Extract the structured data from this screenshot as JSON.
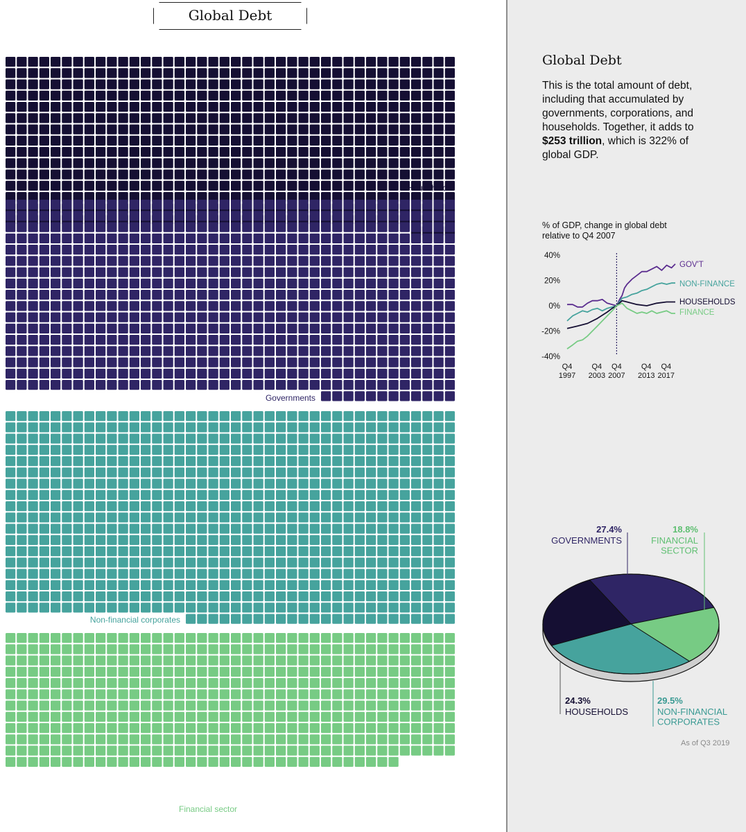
{
  "title": "Global Debt",
  "sidebar": {
    "title": "Global Debt",
    "desc_before": "This is the total amount of debt, including that accumulated by governments, corporations, and households. Together, it adds to ",
    "desc_bold": "$253 trillion",
    "desc_after": ", which is 322% of global GDP.",
    "as_of": "As of Q3 2019"
  },
  "colors": {
    "households": "#150f33",
    "governments": "#2f2565",
    "nonfinancial": "#46a39d",
    "financial": "#77cb84",
    "grid_line": "#ffffff"
  },
  "chart_data": [
    {
      "type": "waffle",
      "title": "Global Debt",
      "columns": 40,
      "segments": [
        {
          "name": "Households",
          "label": "Households",
          "squares": 616,
          "color": "#150f33"
        },
        {
          "name": "Governments",
          "label": "Governments",
          "squares": 694,
          "color": "#2f2565"
        },
        {
          "name": "Non-financial corporates",
          "label": "Non-financial corporates",
          "squares": 746,
          "color": "#46a39d"
        },
        {
          "name": "Financial sector",
          "label": "Financial sector",
          "squares": 475,
          "color": "#77cb84"
        }
      ]
    },
    {
      "type": "line",
      "title": "% of GDP, change in global debt relative to Q4 2007",
      "x_ticks": [
        {
          "top": "Q4",
          "bottom": "1997",
          "x": 1997.9
        },
        {
          "top": "Q4",
          "bottom": "2003",
          "x": 2003.9
        },
        {
          "top": "Q4",
          "bottom": "2007",
          "x": 2007.9
        },
        {
          "top": "Q4",
          "bottom": "2013",
          "x": 2013.9
        },
        {
          "top": "Q4",
          "bottom": "2017",
          "x": 2017.9
        }
      ],
      "y_ticks": [
        "40%",
        "20%",
        "0%",
        "-20%",
        "-40%"
      ],
      "ylim": [
        -40,
        40
      ],
      "xlim": [
        1997.9,
        2019.75
      ],
      "reference_x": 2007.9,
      "series": [
        {
          "name": "GOV'T",
          "color": "#5b2d8f",
          "x": [
            1997.9,
            1999,
            2000,
            2001,
            2002,
            2003,
            2004,
            2005,
            2006,
            2007,
            2007.9,
            2008.5,
            2009,
            2009.5,
            2010,
            2011,
            2012,
            2013,
            2014,
            2015,
            2016,
            2017,
            2018,
            2019,
            2019.75
          ],
          "y": [
            1,
            1,
            -1,
            -1,
            2,
            4,
            4,
            5,
            2,
            1,
            0,
            5,
            8,
            14,
            17,
            21,
            24,
            27,
            27,
            29,
            31,
            28,
            32,
            30,
            33
          ]
        },
        {
          "name": "NON-FINANCE",
          "color": "#46a39d",
          "x": [
            1997.9,
            1999,
            2000,
            2001,
            2002,
            2003,
            2004,
            2005,
            2006,
            2007,
            2007.9,
            2009,
            2010,
            2011,
            2012,
            2013,
            2014,
            2015,
            2016,
            2017,
            2018,
            2019,
            2019.75
          ],
          "y": [
            -12,
            -8,
            -6,
            -4,
            -5,
            -3,
            -2,
            -4,
            -2,
            -1,
            0,
            6,
            7,
            9,
            10,
            12,
            13,
            15,
            17,
            18,
            17,
            18,
            18
          ]
        },
        {
          "name": "HOUSEHOLDS",
          "color": "#150f33",
          "x": [
            1997.9,
            2000,
            2002,
            2004,
            2006,
            2007,
            2007.9,
            2009,
            2010,
            2012,
            2014,
            2016,
            2018,
            2019.75
          ],
          "y": [
            -18,
            -16,
            -14,
            -10,
            -5,
            -2,
            0,
            4,
            3,
            1,
            0,
            2,
            3,
            3
          ]
        },
        {
          "name": "FINANCE",
          "color": "#77cb84",
          "x": [
            1997.9,
            1999,
            2000,
            2001,
            2002,
            2003,
            2004,
            2005,
            2006,
            2007,
            2007.9,
            2009,
            2010,
            2011,
            2012,
            2013,
            2014,
            2015,
            2016,
            2017,
            2018,
            2019,
            2019.75
          ],
          "y": [
            -34,
            -31,
            -28,
            -27,
            -24,
            -20,
            -16,
            -12,
            -8,
            -4,
            0,
            2,
            -2,
            -4,
            -6,
            -5,
            -6,
            -4,
            -6,
            -5,
            -4,
            -6,
            -6
          ]
        }
      ]
    },
    {
      "type": "pie",
      "title": "",
      "slices": [
        {
          "pct_label": "27.4%",
          "name_lines": [
            "GOVERNMENTS"
          ],
          "value": 27.4,
          "color": "#2f2565",
          "label_color": "#2f2565"
        },
        {
          "pct_label": "18.8%",
          "name_lines": [
            "FINANCIAL",
            "SECTOR"
          ],
          "value": 18.8,
          "color": "#77cb84",
          "label_color": "#5fbf72"
        },
        {
          "pct_label": "29.5%",
          "name_lines": [
            "NON-FINANCIAL",
            "CORPORATES"
          ],
          "value": 29.5,
          "color": "#46a39d",
          "label_color": "#3a9a93"
        },
        {
          "pct_label": "24.3%",
          "name_lines": [
            "HOUSEHOLDS"
          ],
          "value": 24.3,
          "color": "#150f33",
          "label_color": "#150f33"
        }
      ]
    }
  ]
}
